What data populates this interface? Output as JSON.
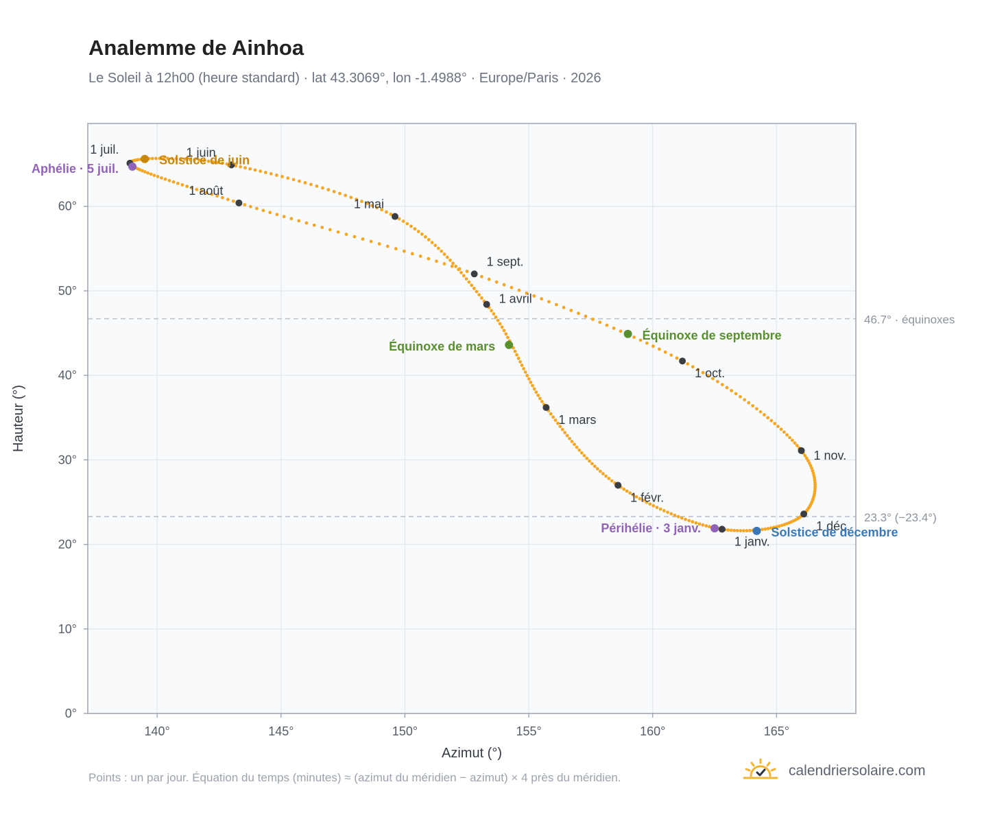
{
  "header": {
    "title": "Analemme de Ainhoa",
    "subtitle": "Le Soleil à 12h00 (heure standard) · lat 43.3069°, lon -1.4988° · Europe/Paris · 2026"
  },
  "footer": {
    "note": "Points : un par jour. Équation du temps (minutes) ≈ (azimut du méridien − azimut) × 4 près du méridien.",
    "brand": "calendriersolaire.com"
  },
  "colors": {
    "curve": "#f5a623",
    "month_dot": "#3a3d42",
    "aphelion": "#9063b8",
    "june_solstice": "#c8860b",
    "equinox": "#5a8f2e",
    "december_solstice": "#3b78b8",
    "plot_bg": "#f8fafc",
    "grid": "#e5e9ef",
    "ref_line": "#b8c2cc"
  },
  "chart_data": {
    "type": "scatter",
    "title": "Analemme de Ainhoa",
    "xlabel": "Azimut (°)",
    "ylabel": "Hauteur (°)",
    "xlim": [
      137.2,
      168.2
    ],
    "ylim": [
      0,
      69.8
    ],
    "x_ticks": [
      140,
      145,
      150,
      155,
      160,
      165
    ],
    "x_tick_labels": [
      "140°",
      "145°",
      "150°",
      "155°",
      "160°",
      "165°"
    ],
    "y_ticks": [
      0,
      10,
      20,
      30,
      40,
      50,
      60
    ],
    "y_tick_labels": [
      "0°",
      "10°",
      "20°",
      "30°",
      "40°",
      "50°",
      "60°"
    ],
    "grid": true,
    "month_markers": [
      {
        "label": "1 janv.",
        "x": 162.8,
        "y": 21.8
      },
      {
        "label": "1 févr.",
        "x": 158.6,
        "y": 27.0
      },
      {
        "label": "1 mars",
        "x": 155.7,
        "y": 36.2
      },
      {
        "label": "1 avril",
        "x": 153.3,
        "y": 48.4
      },
      {
        "label": "1 mai",
        "x": 149.6,
        "y": 58.8
      },
      {
        "label": "1 juin",
        "x": 143.0,
        "y": 64.9
      },
      {
        "label": "1 juil.",
        "x": 138.9,
        "y": 65.1
      },
      {
        "label": "1 août",
        "x": 143.3,
        "y": 60.4
      },
      {
        "label": "1 sept.",
        "x": 152.8,
        "y": 52.0
      },
      {
        "label": "1 oct.",
        "x": 161.2,
        "y": 41.7
      },
      {
        "label": "1 nov.",
        "x": 166.0,
        "y": 31.1
      },
      {
        "label": "1 déc.",
        "x": 166.1,
        "y": 23.6
      }
    ],
    "events": [
      {
        "label": "Aphélie · 5 juil.",
        "x": 139.0,
        "y": 64.7
      },
      {
        "label": "Solstice de juin",
        "x": 139.5,
        "y": 65.6
      },
      {
        "label": "Équinoxe de mars",
        "x": 154.2,
        "y": 43.6
      },
      {
        "label": "Équinoxe de septembre",
        "x": 159.0,
        "y": 44.9
      },
      {
        "label": "Périhélie · 3 janv.",
        "x": 162.5,
        "y": 21.9
      },
      {
        "label": "Solstice de décembre",
        "x": 164.2,
        "y": 21.6
      }
    ],
    "reference_lines": [
      {
        "y": 46.7,
        "label": "46.7° · équinoxes"
      },
      {
        "y": 23.3,
        "label": "23.3° (−23.4°)"
      }
    ]
  }
}
